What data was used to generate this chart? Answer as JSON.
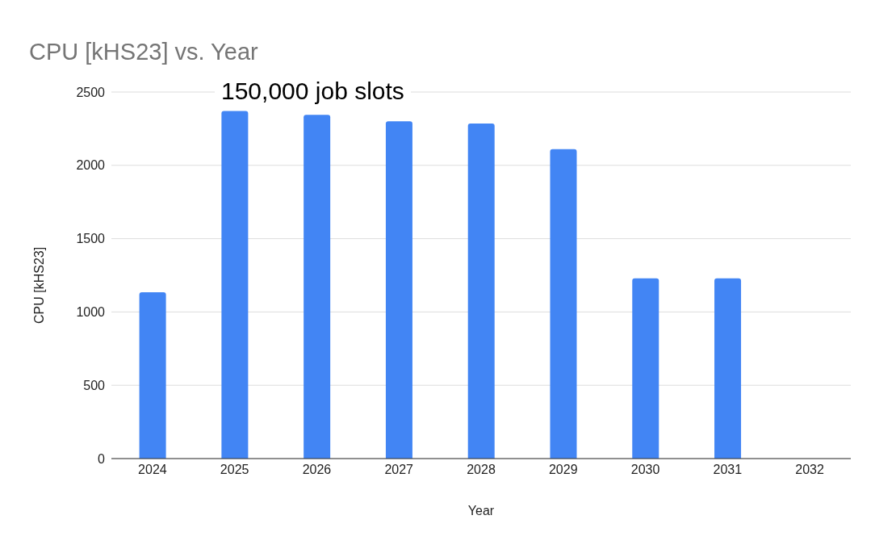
{
  "chart_data": {
    "type": "bar",
    "title": "CPU [kHS23] vs. Year",
    "xlabel": "Year",
    "ylabel": "CPU [kHS23]",
    "categories": [
      "2024",
      "2025",
      "2026",
      "2027",
      "2028",
      "2029",
      "2030",
      "2031",
      "2032"
    ],
    "values": [
      1135,
      2370,
      2345,
      2300,
      2285,
      2110,
      1230,
      1230,
      null
    ],
    "color": "#4285f4",
    "ylim": [
      0,
      2500
    ],
    "yticks": [
      0,
      500,
      1000,
      1500,
      2000,
      2500
    ],
    "grid": "y",
    "annotations": [
      "150,000 job slots"
    ]
  }
}
